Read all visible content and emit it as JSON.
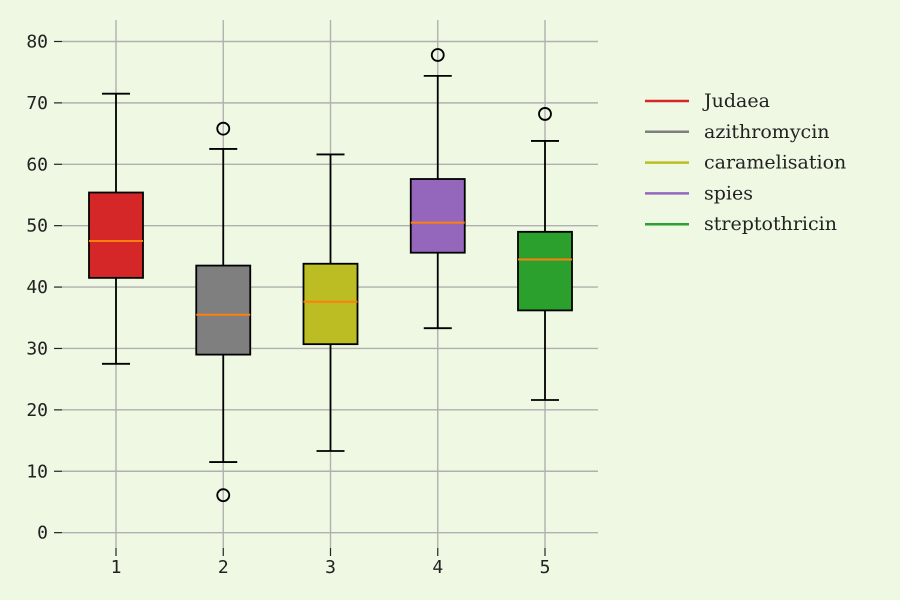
{
  "chart_data": {
    "type": "box",
    "categories": [
      "1",
      "2",
      "3",
      "4",
      "5"
    ],
    "yticks": [
      "0",
      "10",
      "20",
      "30",
      "40",
      "50",
      "60",
      "70",
      "80"
    ],
    "ylim": [
      -2.5,
      83.5
    ],
    "grid": true,
    "legend_position": "right",
    "median_color": "#ff7f0e",
    "background": "#eef8e3",
    "series": [
      {
        "name": "Judaea",
        "color": "#d62728",
        "whisker_low": 27.5,
        "q1": 41.5,
        "median": 47.5,
        "q3": 55.4,
        "whisker_high": 71.5,
        "outliers": []
      },
      {
        "name": "azithromycin",
        "color": "#7f7f7f",
        "whisker_low": 11.5,
        "q1": 29.0,
        "median": 35.5,
        "q3": 43.5,
        "whisker_high": 62.5,
        "outliers": [
          65.8,
          6.1
        ]
      },
      {
        "name": "caramelisation",
        "color": "#bcbd22",
        "whisker_low": 13.3,
        "q1": 30.7,
        "median": 37.6,
        "q3": 43.8,
        "whisker_high": 61.6,
        "outliers": []
      },
      {
        "name": "spies",
        "color": "#9467bd",
        "whisker_low": 33.3,
        "q1": 45.6,
        "median": 50.5,
        "q3": 57.6,
        "whisker_high": 74.4,
        "outliers": [
          77.8
        ]
      },
      {
        "name": "streptothricin",
        "color": "#2ca02c",
        "whisker_low": 21.6,
        "q1": 36.2,
        "median": 44.5,
        "q3": 49.0,
        "whisker_high": 63.8,
        "outliers": [
          68.2
        ]
      }
    ]
  }
}
